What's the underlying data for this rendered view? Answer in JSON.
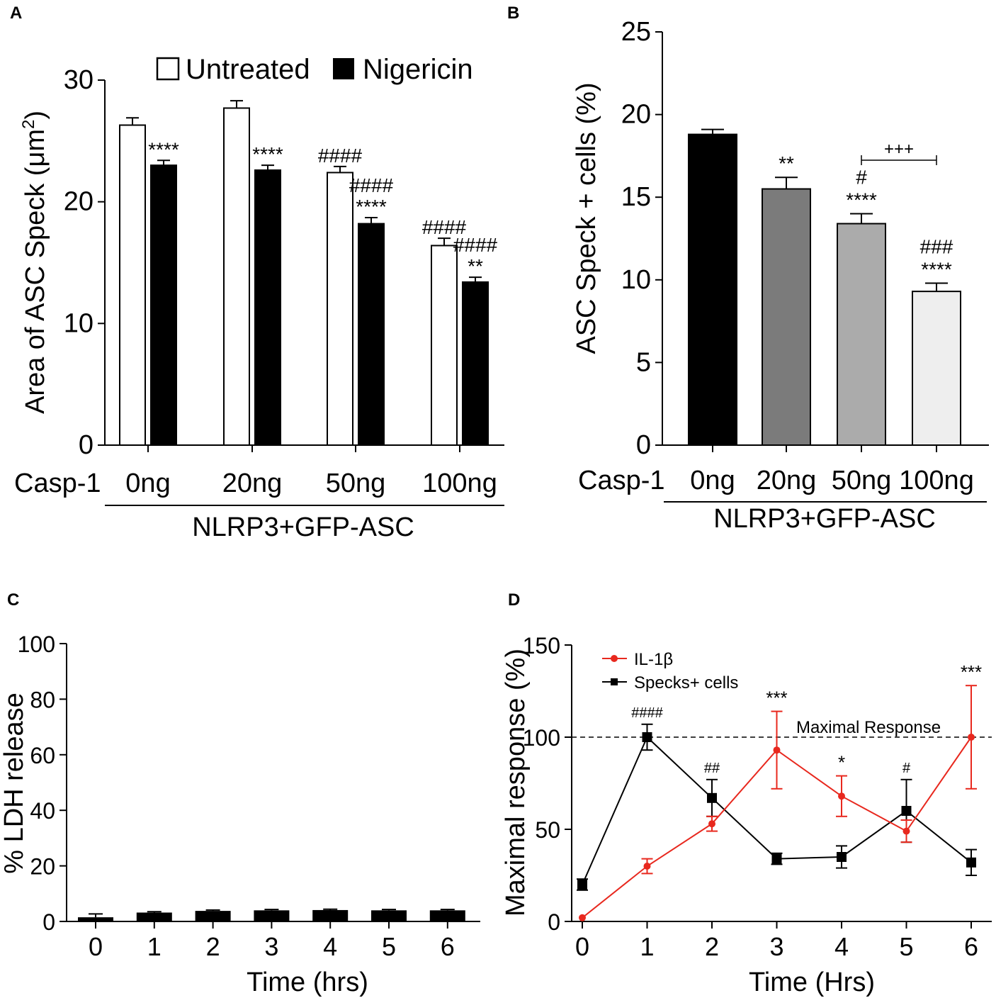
{
  "figure": {
    "panel_labels": [
      "A",
      "B",
      "C",
      "D"
    ]
  },
  "chart_data": [
    {
      "panel": "A",
      "type": "bar",
      "ylabel_main": "Area of ASC Speck (μm",
      "ylabel_sup": "2",
      "ylabel_close": ")",
      "ylim": [
        0,
        30
      ],
      "yticks": [
        0,
        10,
        20,
        30
      ],
      "x_prefix": "Casp-1",
      "categories": [
        "0ng",
        "20ng",
        "50ng",
        "100ng"
      ],
      "group_label": "NLRP3+GFP-ASC",
      "legend": [
        "Untreated",
        "Nigericin"
      ],
      "legend_position": "top",
      "series": [
        {
          "name": "Untreated",
          "color": "#ffffff",
          "values": [
            26.3,
            27.7,
            22.4,
            16.4
          ],
          "errors": [
            0.6,
            0.6,
            0.5,
            0.6
          ],
          "annotations": [
            "",
            "",
            "####",
            "####"
          ]
        },
        {
          "name": "Nigericin",
          "color": "#000000",
          "values": [
            23.0,
            22.6,
            18.2,
            13.4
          ],
          "errors": [
            0.4,
            0.4,
            0.5,
            0.4
          ],
          "annotations": [
            "****",
            "****",
            "####\n****",
            "####\n**"
          ]
        }
      ]
    },
    {
      "panel": "B",
      "type": "bar",
      "ylabel": "ASC Speck + cells (%)",
      "ylim": [
        0,
        25
      ],
      "yticks": [
        0,
        5,
        10,
        15,
        20,
        25
      ],
      "x_prefix": "Casp-1",
      "categories": [
        "0ng",
        "20ng",
        "50ng",
        "100ng"
      ],
      "group_label": "NLRP3+GFP-ASC",
      "colors": [
        "#000000",
        "#7b7b7b",
        "#ababab",
        "#eeeeee"
      ],
      "values": [
        18.8,
        15.5,
        13.4,
        9.3
      ],
      "errors": [
        0.3,
        0.7,
        0.6,
        0.5
      ],
      "annotations": [
        "",
        "**",
        "#\n****",
        "###\n****"
      ],
      "bracket": {
        "from": "50ng",
        "to": "100ng",
        "label": "+++"
      }
    },
    {
      "panel": "C",
      "type": "bar",
      "ylabel": "% LDH release",
      "xlabel": "Time (hrs)",
      "ylim": [
        0,
        100
      ],
      "yticks": [
        0,
        20,
        40,
        60,
        80,
        100
      ],
      "categories": [
        "0",
        "1",
        "2",
        "3",
        "4",
        "5",
        "6"
      ],
      "values": [
        1.5,
        3.2,
        3.8,
        4.0,
        4.1,
        4.0,
        4.0
      ],
      "errors": [
        1.2,
        0.3,
        0.3,
        0.3,
        0.3,
        0.3,
        0.3
      ],
      "color": "#000000"
    },
    {
      "panel": "D",
      "type": "line",
      "ylabel": "Maximal response (%)",
      "xlabel": "Time (Hrs)",
      "ylim": [
        0,
        150
      ],
      "yticks": [
        0,
        50,
        100,
        150
      ],
      "x": [
        0,
        1,
        2,
        3,
        4,
        5,
        6
      ],
      "reference_line": {
        "y": 100,
        "label": "Maximal Response"
      },
      "legend_position": "top-left",
      "series": [
        {
          "name": "IL-1β",
          "color": "#e8281e",
          "marker": "circle",
          "values": [
            2,
            30,
            53,
            93,
            68,
            49,
            100
          ],
          "errors": [
            0,
            4,
            4,
            21,
            11,
            6,
            28
          ],
          "annotations": [
            "",
            "",
            "",
            "***",
            "*",
            "",
            "***"
          ]
        },
        {
          "name": "Specks+ cells",
          "color": "#000000",
          "marker": "square",
          "values": [
            20,
            100,
            67,
            34,
            35,
            60,
            32
          ],
          "errors": [
            3,
            7,
            10,
            3,
            6,
            17,
            7
          ],
          "annotations": [
            "",
            "####",
            "##",
            "",
            "",
            "#",
            ""
          ]
        }
      ]
    }
  ]
}
